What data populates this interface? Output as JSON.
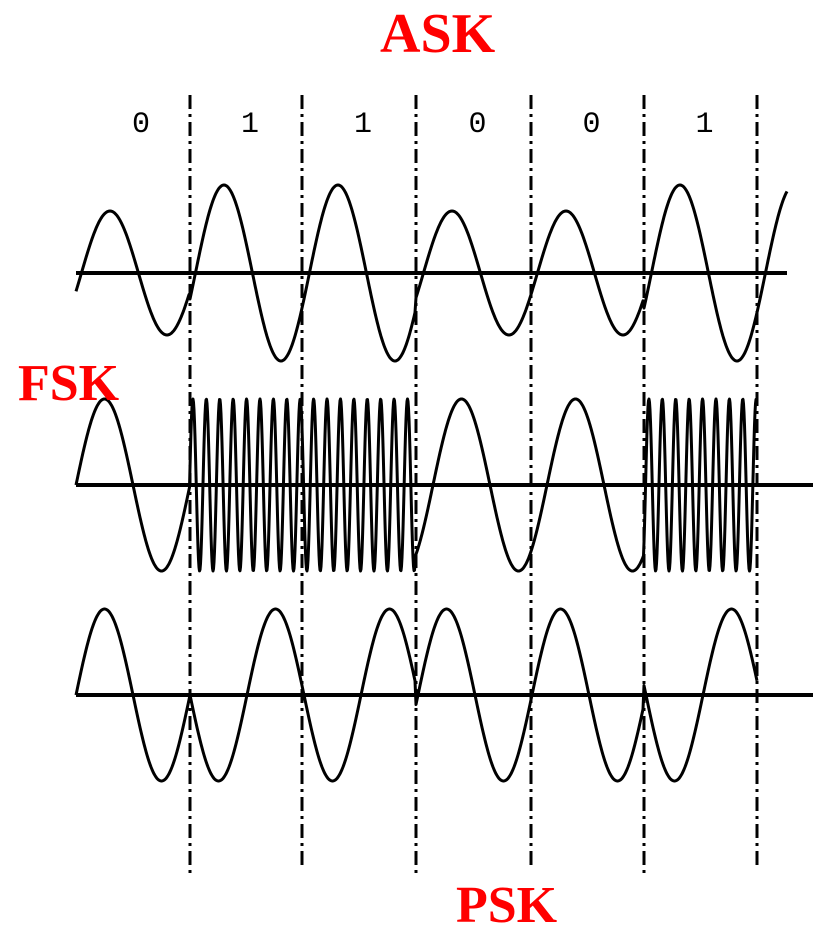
{
  "labels": {
    "ask": "ASK",
    "fsk": "FSK",
    "psk": "PSK"
  },
  "bits": [
    "0",
    "1",
    "1",
    "0",
    "0",
    "1"
  ],
  "colors": {
    "label": "#ff0000",
    "wave": "#000000",
    "background": "#ffffff"
  }
}
